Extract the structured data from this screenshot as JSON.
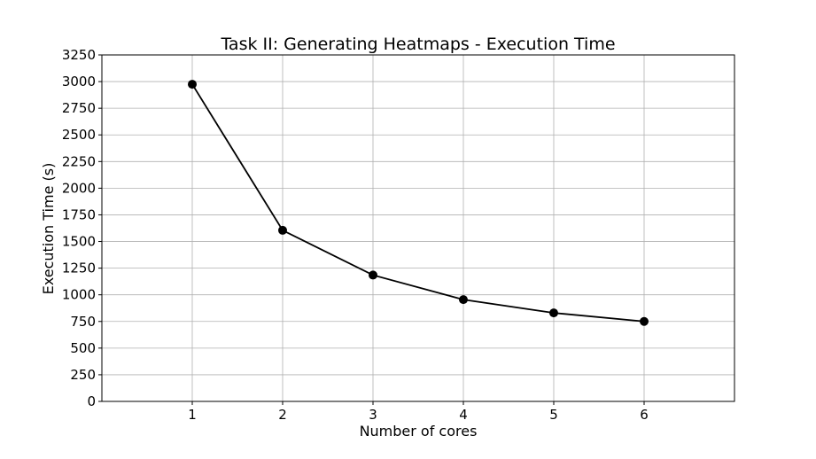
{
  "chart_data": {
    "type": "line",
    "title": "Task II: Generating Heatmaps - Execution Time",
    "xlabel": "Number of cores",
    "ylabel": "Execution Time (s)",
    "x": [
      1,
      2,
      3,
      4,
      5,
      6
    ],
    "series": [
      {
        "values": [
          2975,
          1605,
          1185,
          955,
          830,
          750
        ],
        "color": "#000000",
        "marker": "circle"
      }
    ],
    "xlim": [
      0,
      7
    ],
    "ylim": [
      0,
      3250
    ],
    "xticks": [
      "1",
      "2",
      "3",
      "4",
      "5",
      "6"
    ],
    "yticks": [
      "0",
      "250",
      "500",
      "750",
      "1000",
      "1250",
      "1500",
      "1750",
      "2000",
      "2250",
      "2500",
      "2750",
      "3000",
      "3250"
    ],
    "grid": true
  }
}
